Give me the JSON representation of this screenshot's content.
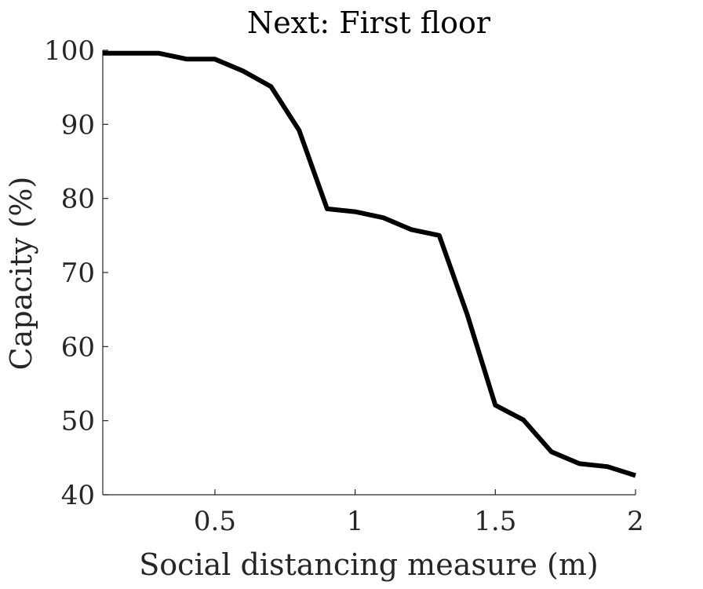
{
  "chart_data": {
    "type": "line",
    "title": "Next: First floor",
    "xlabel": "Social distancing measure (m)",
    "ylabel": "Capacity (%)",
    "xlim": [
      0.1,
      2
    ],
    "ylim": [
      40,
      100
    ],
    "xticks": [
      0.5,
      1,
      1.5,
      2
    ],
    "xtick_labels": [
      "0.5",
      "1",
      "1.5",
      "2"
    ],
    "yticks": [
      40,
      50,
      60,
      70,
      80,
      90,
      100
    ],
    "ytick_labels": [
      "40",
      "50",
      "60",
      "70",
      "80",
      "90",
      "100"
    ],
    "grid": false,
    "legend": false,
    "colors": {
      "line": "#000000",
      "axis": "#262626"
    },
    "series": [
      {
        "x": [
          0.1,
          0.2,
          0.3,
          0.4,
          0.5,
          0.6,
          0.7,
          0.8,
          0.9,
          1.0,
          1.1,
          1.2,
          1.3,
          1.4,
          1.5,
          1.6,
          1.7,
          1.8,
          1.9,
          2.0
        ],
        "y": [
          99.6,
          99.6,
          99.6,
          98.8,
          98.8,
          97.2,
          95.1,
          89.2,
          78.6,
          78.2,
          77.4,
          75.8,
          75.0,
          64.3,
          52.1,
          50.1,
          45.8,
          44.2,
          43.8,
          42.6
        ]
      }
    ]
  }
}
